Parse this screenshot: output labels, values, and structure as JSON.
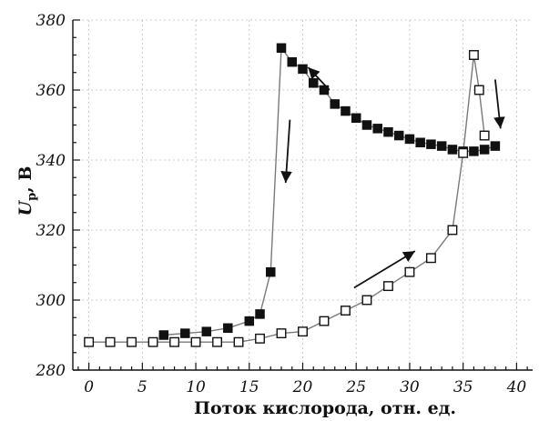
{
  "chart_data": {
    "type": "scatter",
    "title": "",
    "xlabel": "Поток кислорода, отн. ед.",
    "ylabel": {
      "main": "U",
      "sub": "р",
      "rest": ", В"
    },
    "xlim": [
      -1.5,
      41.5
    ],
    "ylim": [
      280,
      380
    ],
    "x_ticks": [
      0,
      5,
      10,
      15,
      20,
      25,
      30,
      35,
      40
    ],
    "y_ticks": [
      280,
      300,
      320,
      340,
      360,
      380
    ],
    "x_minor_step": 1,
    "y_minor_step": 5,
    "grid": true,
    "legend": "none",
    "series": [
      {
        "marker": "filled-square",
        "color": "#111111",
        "line_color": "#7a7a7a",
        "points": [
          [
            7,
            290
          ],
          [
            9,
            290.5
          ],
          [
            11,
            291
          ],
          [
            13,
            292
          ],
          [
            15,
            294
          ],
          [
            16,
            296
          ],
          [
            17,
            308
          ],
          [
            18,
            372
          ],
          [
            19,
            368
          ],
          [
            20,
            366
          ],
          [
            21,
            362
          ],
          [
            22,
            360
          ],
          [
            23,
            356
          ],
          [
            24,
            354
          ],
          [
            25,
            352
          ],
          [
            26,
            350
          ],
          [
            27,
            349
          ],
          [
            28,
            348
          ],
          [
            29,
            347
          ],
          [
            30,
            346
          ],
          [
            31,
            345
          ],
          [
            32,
            344.5
          ],
          [
            33,
            344
          ],
          [
            34,
            343
          ],
          [
            35,
            342.5
          ],
          [
            36,
            342.5
          ],
          [
            37,
            343
          ],
          [
            38,
            344
          ]
        ]
      },
      {
        "marker": "open-square",
        "color": "#111111",
        "line_color": "#7a7a7a",
        "points": [
          [
            0,
            288
          ],
          [
            2,
            288
          ],
          [
            4,
            288
          ],
          [
            6,
            288
          ],
          [
            8,
            288
          ],
          [
            10,
            288
          ],
          [
            12,
            288
          ],
          [
            14,
            288
          ],
          [
            16,
            289
          ],
          [
            18,
            290.5
          ],
          [
            20,
            291
          ],
          [
            22,
            294
          ],
          [
            24,
            297
          ],
          [
            26,
            300
          ],
          [
            28,
            304
          ],
          [
            30,
            308
          ],
          [
            32,
            312
          ],
          [
            34,
            320
          ],
          [
            35,
            342
          ],
          [
            36,
            370
          ],
          [
            36.5,
            360
          ],
          [
            37,
            347
          ]
        ]
      }
    ],
    "annotations": [
      {
        "type": "arrow",
        "from": [
          22.5,
          360
        ],
        "to": [
          20.5,
          366.5
        ]
      },
      {
        "type": "arrow",
        "from": [
          18.8,
          351.5
        ],
        "to": [
          18.4,
          333.5
        ]
      },
      {
        "type": "arrow",
        "from": [
          24.8,
          303.5
        ],
        "to": [
          30.5,
          314
        ]
      },
      {
        "type": "arrow",
        "from": [
          38,
          363
        ],
        "to": [
          38.5,
          349
        ]
      }
    ]
  }
}
